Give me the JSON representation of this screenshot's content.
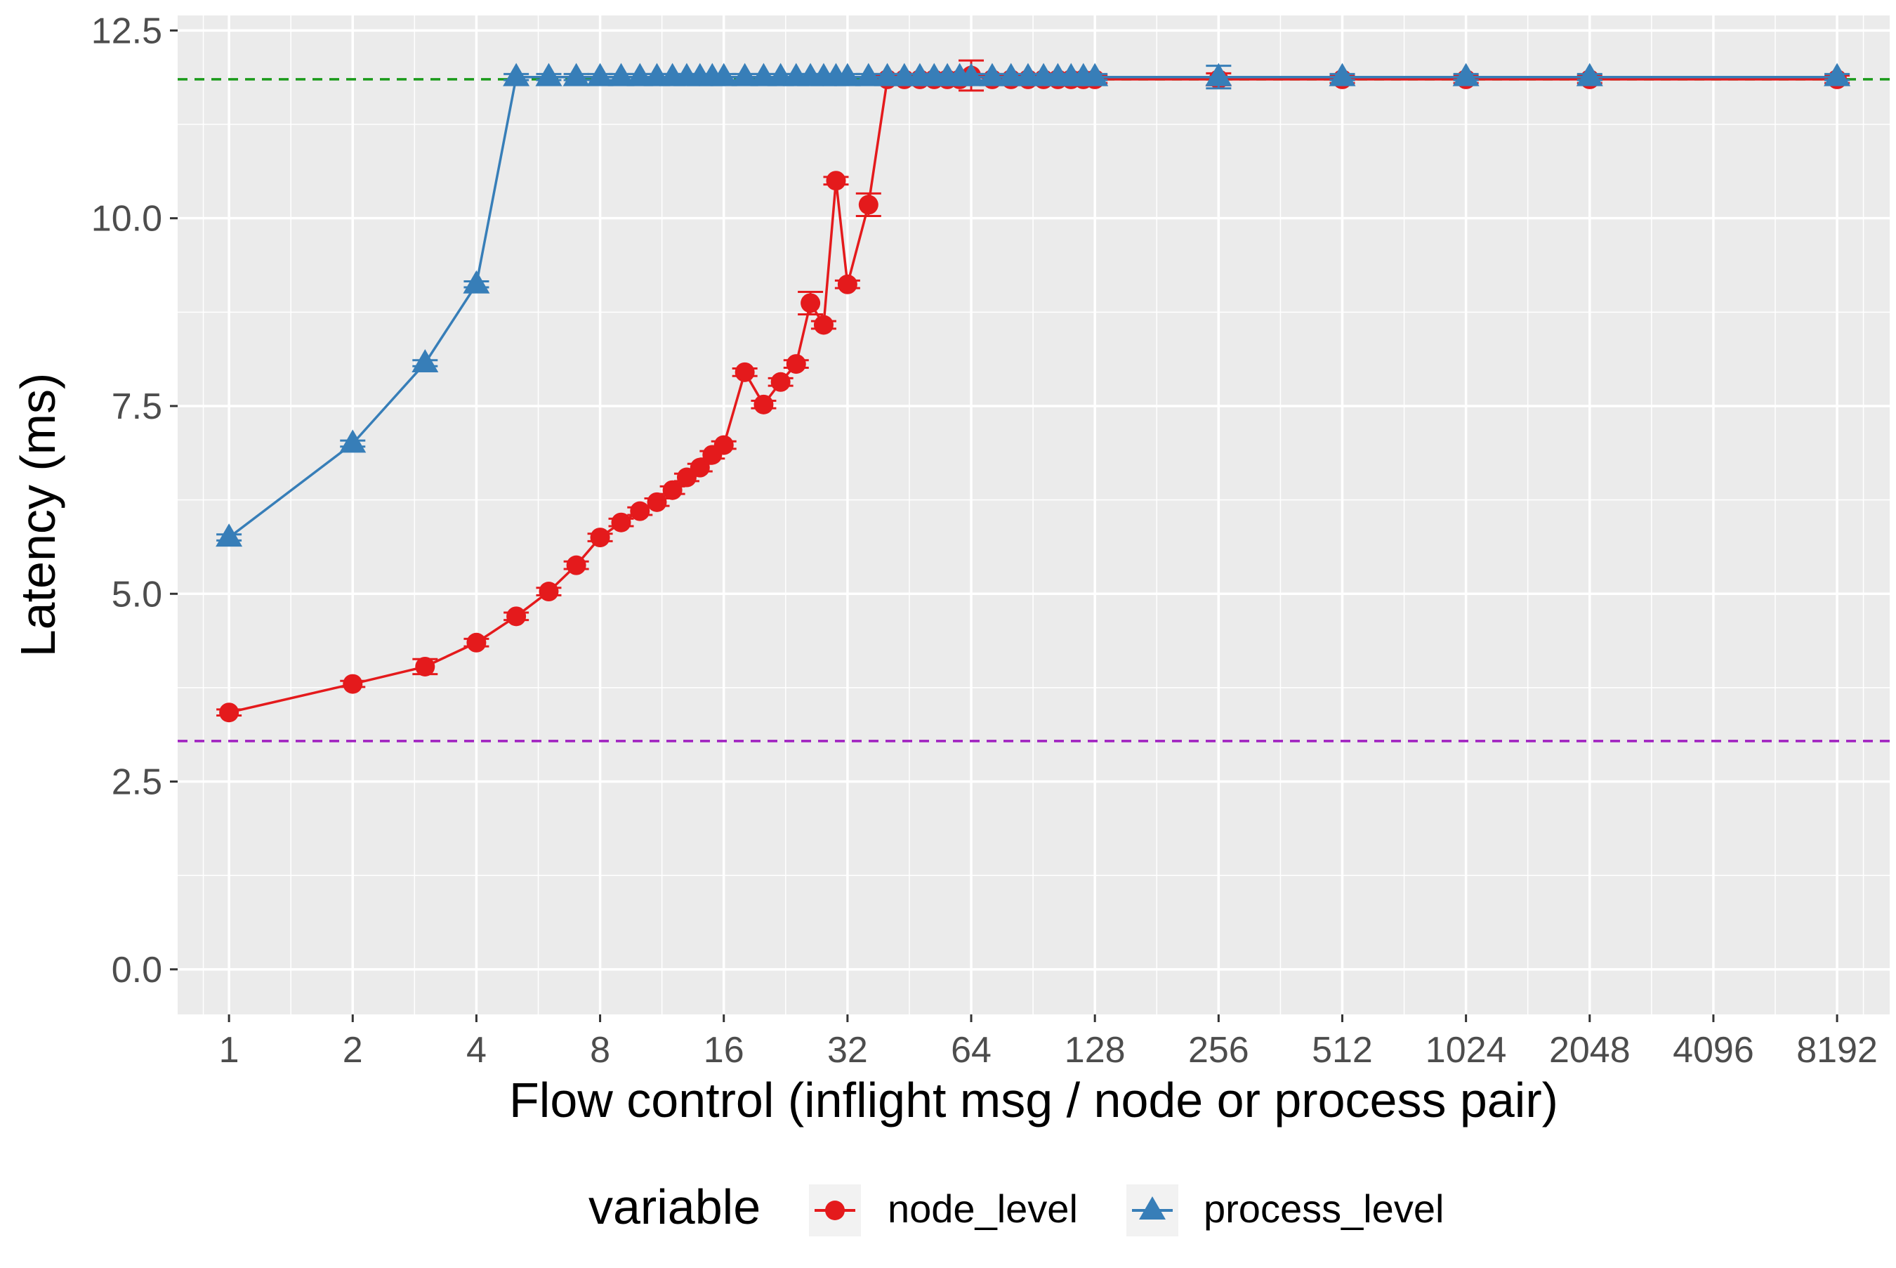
{
  "chart_data": {
    "type": "line",
    "xlabel": "Flow control (inflight msg / node or process pair)",
    "ylabel": "Latency (ms)",
    "x_scale": "log2",
    "xlim": [
      0.75,
      11000
    ],
    "ylim": [
      -0.6,
      12.7
    ],
    "x_ticks": [
      1,
      2,
      4,
      8,
      16,
      32,
      64,
      128,
      256,
      512,
      1024,
      2048,
      4096,
      8192
    ],
    "x_tick_labels": [
      "1",
      "2",
      "4",
      "8",
      "16",
      "32",
      "64",
      "128",
      "256",
      "512",
      "1024",
      "2048",
      "4096",
      "8192"
    ],
    "y_ticks": [
      0,
      2.5,
      5,
      7.5,
      10,
      12.5
    ],
    "y_tick_labels": [
      "0.0",
      "2.5",
      "5.0",
      "7.5",
      "10.0",
      "12.5"
    ],
    "grid": true,
    "legend_position": "bottom",
    "legend_title": "variable",
    "reference_lines": [
      {
        "y": 11.85,
        "color": "#1a9a1a",
        "style": "dashed"
      },
      {
        "y": 3.04,
        "color": "#a020c0",
        "style": "dashed"
      }
    ],
    "series": [
      {
        "name": "node_level",
        "color": "#e41a1c",
        "marker": "circle",
        "x": [
          1,
          2,
          3,
          4,
          5,
          6,
          7,
          8,
          9,
          10,
          11,
          12,
          13,
          14,
          15,
          16,
          18,
          20,
          22,
          24,
          26,
          28,
          30,
          32,
          36,
          40,
          44,
          48,
          52,
          56,
          60,
          64,
          72,
          80,
          88,
          96,
          104,
          112,
          120,
          128,
          256,
          512,
          1024,
          2048,
          8192
        ],
        "y": [
          3.42,
          3.8,
          4.03,
          4.35,
          4.7,
          5.03,
          5.38,
          5.75,
          5.95,
          6.1,
          6.22,
          6.38,
          6.55,
          6.68,
          6.85,
          6.98,
          7.95,
          7.52,
          7.82,
          8.06,
          8.87,
          8.58,
          10.5,
          9.12,
          10.18,
          11.85,
          11.85,
          11.85,
          11.85,
          11.85,
          11.85,
          11.9,
          11.85,
          11.85,
          11.85,
          11.85,
          11.85,
          11.85,
          11.85,
          11.85,
          11.85,
          11.85,
          11.85,
          11.85,
          11.85
        ],
        "error": [
          0.04,
          0.04,
          0.1,
          0.05,
          0.05,
          0.05,
          0.05,
          0.05,
          0.05,
          0.05,
          0.05,
          0.05,
          0.05,
          0.05,
          0.05,
          0.05,
          0.05,
          0.05,
          0.05,
          0.05,
          0.15,
          0.05,
          0.05,
          0.05,
          0.15,
          0.05,
          0.05,
          0.05,
          0.05,
          0.05,
          0.05,
          0.2,
          0.05,
          0.05,
          0.05,
          0.05,
          0.05,
          0.05,
          0.05,
          0.05,
          0.08,
          0.05,
          0.05,
          0.05,
          0.05
        ]
      },
      {
        "name": "process_level",
        "color": "#377eb8",
        "marker": "triangle",
        "x": [
          1,
          2,
          3,
          4,
          5,
          6,
          7,
          8,
          9,
          10,
          11,
          12,
          13,
          14,
          15,
          16,
          18,
          20,
          22,
          24,
          26,
          28,
          30,
          32,
          36,
          40,
          44,
          48,
          52,
          56,
          60,
          64,
          72,
          80,
          88,
          96,
          104,
          112,
          120,
          128,
          256,
          512,
          1024,
          2048,
          8192
        ],
        "y": [
          5.75,
          7.0,
          8.07,
          9.12,
          11.88,
          11.88,
          11.88,
          11.88,
          11.88,
          11.88,
          11.88,
          11.88,
          11.88,
          11.88,
          11.88,
          11.88,
          11.88,
          11.88,
          11.88,
          11.88,
          11.88,
          11.88,
          11.88,
          11.88,
          11.88,
          11.88,
          11.88,
          11.88,
          11.88,
          11.88,
          11.88,
          11.88,
          11.88,
          11.88,
          11.88,
          11.88,
          11.88,
          11.88,
          11.88,
          11.88,
          11.88,
          11.88,
          11.88,
          11.88,
          11.88
        ],
        "error": [
          0.04,
          0.04,
          0.04,
          0.04,
          0.04,
          0.04,
          0.04,
          0.04,
          0.04,
          0.04,
          0.04,
          0.04,
          0.04,
          0.04,
          0.04,
          0.04,
          0.04,
          0.04,
          0.04,
          0.04,
          0.04,
          0.04,
          0.04,
          0.04,
          0.04,
          0.04,
          0.04,
          0.04,
          0.04,
          0.04,
          0.04,
          0.04,
          0.04,
          0.04,
          0.04,
          0.04,
          0.04,
          0.04,
          0.04,
          0.04,
          0.15,
          0.04,
          0.04,
          0.04,
          0.04
        ]
      }
    ]
  }
}
